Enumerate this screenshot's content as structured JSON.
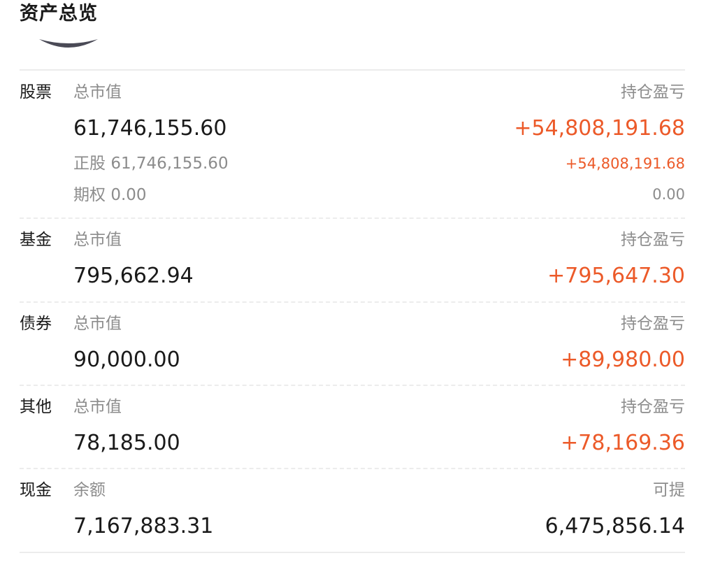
{
  "header": {
    "title": "资产总览"
  },
  "colors": {
    "gain": "#ec5a29",
    "muted": "#8c8c8c",
    "text": "#1a1a1a",
    "divider": "#ececec",
    "chart_stub": "#4a4a56"
  },
  "sections": {
    "stock": {
      "category": "股票",
      "left_label": "总市值",
      "right_label": "持仓盈亏",
      "total_value": "61,746,155.60",
      "total_pl": "+54,808,191.68",
      "equity_label": "正股",
      "equity_value": "61,746,155.60",
      "equity_pl": "+54,808,191.68",
      "options_label": "期权",
      "options_value": "0.00",
      "options_pl": "0.00"
    },
    "fund": {
      "category": "基金",
      "left_label": "总市值",
      "right_label": "持仓盈亏",
      "total_value": "795,662.94",
      "total_pl": "+795,647.30"
    },
    "bond": {
      "category": "债券",
      "left_label": "总市值",
      "right_label": "持仓盈亏",
      "total_value": "90,000.00",
      "total_pl": "+89,980.00"
    },
    "other": {
      "category": "其他",
      "left_label": "总市值",
      "right_label": "持仓盈亏",
      "total_value": "78,185.00",
      "total_pl": "+78,169.36"
    },
    "cash": {
      "category": "现金",
      "left_label": "余额",
      "right_label": "可提",
      "balance": "7,167,883.31",
      "withdrawable": "6,475,856.14"
    }
  }
}
